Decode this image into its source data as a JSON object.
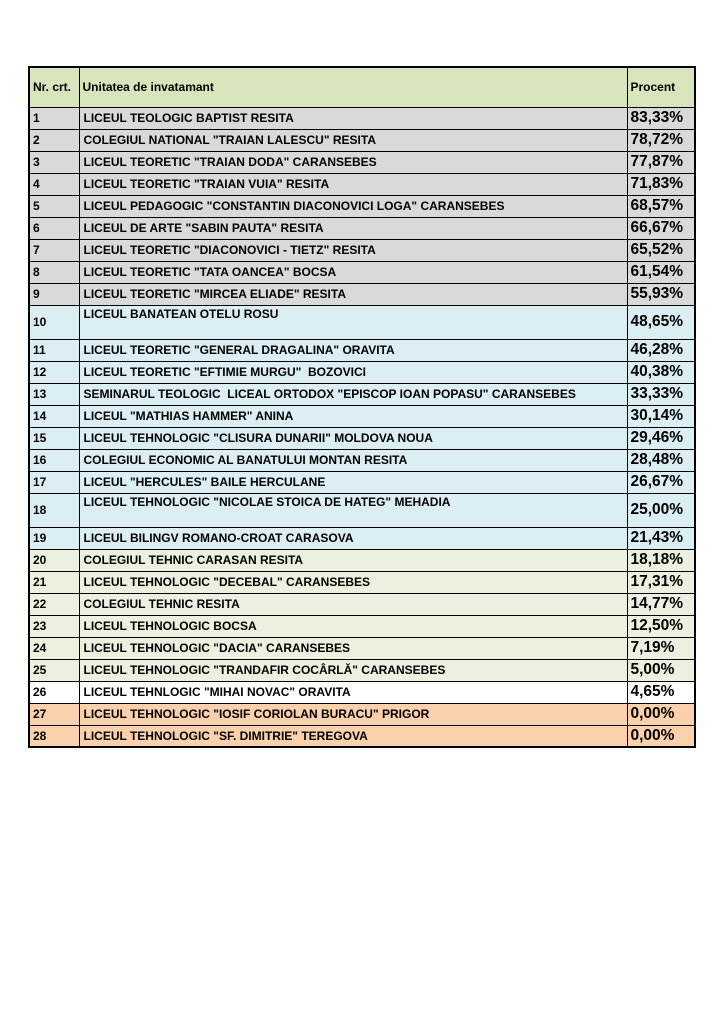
{
  "colors": {
    "header": "#d7e4bc",
    "gray": "#d9d9d9",
    "blue": "#daeef3",
    "cream": "#ebf1de",
    "white": "#ffffff",
    "peach": "#fbd0ac"
  },
  "table": {
    "columns": [
      "Nr. crt.",
      "Unitatea de invatamant",
      "Procent"
    ],
    "rows": [
      {
        "nr": "1",
        "name": "LICEUL TEOLOGIC BAPTIST RESITA",
        "procent": "83,33%",
        "group": "gray"
      },
      {
        "nr": "2",
        "name": "COLEGIUL NATIONAL \"TRAIAN LALESCU\" RESITA",
        "procent": "78,72%",
        "group": "gray"
      },
      {
        "nr": "3",
        "name": "LICEUL TEORETIC \"TRAIAN DODA\" CARANSEBES",
        "procent": "77,87%",
        "group": "gray"
      },
      {
        "nr": "4",
        "name": "LICEUL TEORETIC \"TRAIAN VUIA\" RESITA",
        "procent": "71,83%",
        "group": "gray"
      },
      {
        "nr": "5",
        "name": "LICEUL PEDAGOGIC \"CONSTANTIN DIACONOVICI LOGA\" CARANSEBES",
        "procent": "68,57%",
        "group": "gray"
      },
      {
        "nr": "6",
        "name": "LICEUL DE ARTE \"SABIN PAUTA\" RESITA",
        "procent": "66,67%",
        "group": "gray"
      },
      {
        "nr": "7",
        "name": "LICEUL TEORETIC \"DIACONOVICI - TIETZ\" RESITA",
        "procent": "65,52%",
        "group": "gray"
      },
      {
        "nr": "8",
        "name": "LICEUL TEORETIC \"TATA OANCEA\" BOCSA",
        "procent": "61,54%",
        "group": "gray"
      },
      {
        "nr": "9",
        "name": "LICEUL TEORETIC \"MIRCEA ELIADE\" RESITA",
        "procent": "55,93%",
        "group": "gray"
      },
      {
        "nr": "10",
        "name": "LICEUL BANATEAN OTELU ROSU",
        "procent": "48,65%",
        "group": "blue",
        "tall": true
      },
      {
        "nr": "11",
        "name": "LICEUL TEORETIC \"GENERAL DRAGALINA\" ORAVITA",
        "procent": "46,28%",
        "group": "blue"
      },
      {
        "nr": "12",
        "name": "LICEUL TEORETIC \"EFTIMIE MURGU\"  BOZOVICI",
        "procent": "40,38%",
        "group": "blue"
      },
      {
        "nr": "13",
        "name": "SEMINARUL TEOLOGIC  LICEAL ORTODOX \"EPISCOP IOAN POPASU\" CARANSEBES",
        "procent": "33,33%",
        "group": "blue"
      },
      {
        "nr": "14",
        "name": "LICEUL \"MATHIAS HAMMER\" ANINA",
        "procent": "30,14%",
        "group": "blue"
      },
      {
        "nr": "15",
        "name": "LICEUL TEHNOLOGIC \"CLISURA DUNARII\" MOLDOVA NOUA",
        "procent": "29,46%",
        "group": "blue"
      },
      {
        "nr": "16",
        "name": "COLEGIUL ECONOMIC AL BANATULUI MONTAN RESITA",
        "procent": "28,48%",
        "group": "blue"
      },
      {
        "nr": "17",
        "name": "LICEUL \"HERCULES\" BAILE HERCULANE",
        "procent": "26,67%",
        "group": "blue"
      },
      {
        "nr": "18",
        "name": "LICEUL TEHNOLOGIC \"NICOLAE STOICA DE HATEG\" MEHADIA",
        "procent": "25,00%",
        "group": "blue",
        "tall": true
      },
      {
        "nr": "19",
        "name": "LICEUL BILINGV ROMANO-CROAT CARASOVA",
        "procent": "21,43%",
        "group": "blue"
      },
      {
        "nr": "20",
        "name": "COLEGIUL TEHNIC CARASAN RESITA",
        "procent": "18,18%",
        "group": "cream"
      },
      {
        "nr": "21",
        "name": "LICEUL TEHNOLOGIC \"DECEBAL\" CARANSEBES",
        "procent": "17,31%",
        "group": "cream"
      },
      {
        "nr": "22",
        "name": "COLEGIUL TEHNIC RESITA",
        "procent": "14,77%",
        "group": "cream"
      },
      {
        "nr": "23",
        "name": "LICEUL TEHNOLOGIC BOCSA",
        "procent": "12,50%",
        "group": "cream"
      },
      {
        "nr": "24",
        "name": "LICEUL TEHNOLOGIC \"DACIA\" CARANSEBES",
        "procent": "7,19%",
        "group": "cream"
      },
      {
        "nr": "25",
        "name": "LICEUL TEHNOLOGIC \"TRANDAFIR COCÂRLĂ\" CARANSEBES",
        "procent": "5,00%",
        "group": "cream"
      },
      {
        "nr": "26",
        "name": "LICEUL TEHNLOGIC \"MIHAI NOVAC\" ORAVITA",
        "procent": "4,65%",
        "group": "white"
      },
      {
        "nr": "27",
        "name": "LICEUL TEHNOLOGIC \"IOSIF CORIOLAN BURACU\" PRIGOR",
        "procent": "0,00%",
        "group": "peach"
      },
      {
        "nr": "28",
        "name": "LICEUL TEHNOLOGIC \"SF. DIMITRIE\" TEREGOVA",
        "procent": "0,00%",
        "group": "peach"
      }
    ]
  }
}
